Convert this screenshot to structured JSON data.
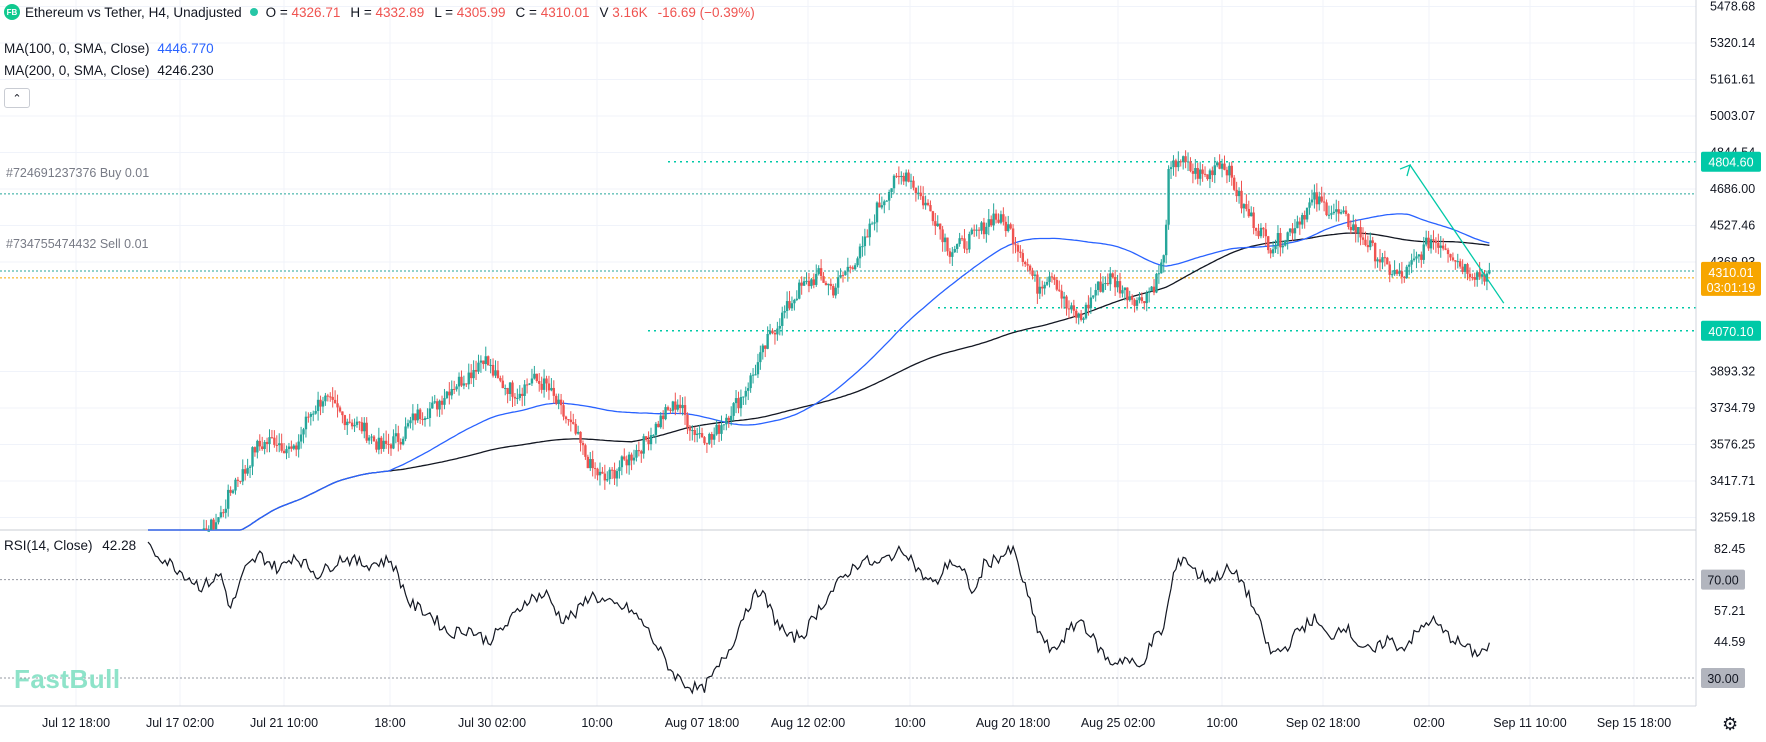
{
  "header": {
    "logo_text": "FB",
    "symbol_title": "Ethereum vs Tether, H4, Unadjusted",
    "open_label": "O =",
    "open": "4326.71",
    "high_label": "H =",
    "high": "4332.89",
    "low_label": "L =",
    "low": "4305.99",
    "close_label": "C =",
    "close": "4310.01",
    "volume_label": "V",
    "volume": "3.16K",
    "change": "-16.69 (−0.39%)"
  },
  "indicators": {
    "ma100": {
      "label": "MA(100, 0, SMA, Close)",
      "value": "4446.770",
      "color": "#2962ff"
    },
    "ma200": {
      "label": "MA(200, 0, SMA, Close)",
      "value": "4246.230",
      "color": "#131722"
    },
    "collapse_icon": "chevron-up-icon"
  },
  "orders": {
    "buy_label": "#724691237376 Buy 0.01",
    "sell_label": "#734755474432 Sell 0.01"
  },
  "rsi": {
    "label": "RSI(14, Close)",
    "value": "42.28",
    "ticks": [
      "82.45",
      "70.00",
      "57.21",
      "44.59",
      "30.00"
    ]
  },
  "badges": {
    "level_upper": "4804.60",
    "level_lower": "4070.10",
    "last_price": "4310.01",
    "countdown": "03:01:19",
    "rsi_70": "70.00",
    "rsi_30": "30.00"
  },
  "watermark": "FastBull",
  "settings_icon": "gear-icon",
  "colors": {
    "up": "#26a69a",
    "down": "#ef5350",
    "ma100": "#2962ff",
    "ma200": "#131722",
    "level_green": "#00c9a7",
    "last_price_badge": "#f7a600",
    "grid": "#f0f3fa"
  },
  "chart_data": {
    "type": "candlestick",
    "timeframe": "H4",
    "price_axis_ticks": [
      5478.68,
      5320.14,
      5161.61,
      5003.07,
      4844.54,
      4686.0,
      4527.46,
      4368.93,
      3893.32,
      3734.79,
      3576.25,
      3417.71,
      3259.18
    ],
    "price_axis_labels": [
      "5478.68",
      "5320.14",
      "5161.61",
      "5003.07",
      "4844.54",
      "4686.00",
      "4527.46",
      "4368.93",
      "3893.32",
      "3734.79",
      "3576.25",
      "3417.71",
      "3259.18"
    ],
    "time_axis_labels": [
      "Jul 12 18:00",
      "Jul 17 02:00",
      "Jul 21 10:00",
      "18:00",
      "Jul 30 02:00",
      "10:00",
      "Aug 07 18:00",
      "Aug 12 02:00",
      "10:00",
      "Aug 20 18:00",
      "Aug 25 02:00",
      "10:00",
      "Sep 02 18:00",
      "02:00",
      "Sep 11 10:00",
      "Sep 15 18:00"
    ],
    "horizontal_levels": [
      4804.6,
      4070.1,
      4170.0
    ],
    "order_lines": {
      "buy": 4665.0,
      "sell": 4330.0
    },
    "forecast_arrow": {
      "from": 4190.0,
      "to": 4790.0
    },
    "price_path": [
      [
        0,
        3135
      ],
      [
        20,
        3140
      ],
      [
        30,
        3270
      ],
      [
        36,
        3420
      ],
      [
        40,
        3460
      ],
      [
        44,
        3560
      ],
      [
        52,
        3600
      ],
      [
        60,
        3540
      ],
      [
        66,
        3700
      ],
      [
        72,
        3780
      ],
      [
        80,
        3700
      ],
      [
        88,
        3650
      ],
      [
        96,
        3560
      ],
      [
        104,
        3610
      ],
      [
        110,
        3700
      ],
      [
        118,
        3740
      ],
      [
        124,
        3820
      ],
      [
        132,
        3880
      ],
      [
        138,
        3960
      ],
      [
        144,
        3850
      ],
      [
        152,
        3800
      ],
      [
        158,
        3860
      ],
      [
        164,
        3830
      ],
      [
        170,
        3720
      ],
      [
        176,
        3620
      ],
      [
        182,
        3480
      ],
      [
        188,
        3420
      ],
      [
        196,
        3500
      ],
      [
        204,
        3580
      ],
      [
        212,
        3700
      ],
      [
        218,
        3760
      ],
      [
        224,
        3640
      ],
      [
        232,
        3600
      ],
      [
        238,
        3700
      ],
      [
        244,
        3780
      ],
      [
        250,
        3900
      ],
      [
        256,
        4050
      ],
      [
        262,
        4150
      ],
      [
        268,
        4250
      ],
      [
        276,
        4310
      ],
      [
        282,
        4250
      ],
      [
        288,
        4340
      ],
      [
        294,
        4420
      ],
      [
        300,
        4600
      ],
      [
        306,
        4700
      ],
      [
        312,
        4760
      ],
      [
        318,
        4650
      ],
      [
        324,
        4560
      ],
      [
        330,
        4420
      ],
      [
        336,
        4450
      ],
      [
        342,
        4500
      ],
      [
        348,
        4570
      ],
      [
        354,
        4520
      ],
      [
        360,
        4400
      ],
      [
        366,
        4260
      ],
      [
        372,
        4330
      ],
      [
        378,
        4170
      ],
      [
        384,
        4120
      ],
      [
        390,
        4250
      ],
      [
        396,
        4300
      ],
      [
        402,
        4240
      ],
      [
        408,
        4200
      ],
      [
        414,
        4270
      ],
      [
        418,
        4380
      ],
      [
        420,
        4740
      ],
      [
        424,
        4820
      ],
      [
        430,
        4760
      ],
      [
        436,
        4740
      ],
      [
        440,
        4810
      ],
      [
        444,
        4780
      ],
      [
        450,
        4620
      ],
      [
        456,
        4530
      ],
      [
        462,
        4440
      ],
      [
        468,
        4480
      ],
      [
        474,
        4560
      ],
      [
        480,
        4640
      ],
      [
        486,
        4600
      ],
      [
        492,
        4560
      ],
      [
        498,
        4500
      ],
      [
        504,
        4420
      ],
      [
        510,
        4340
      ],
      [
        516,
        4300
      ],
      [
        522,
        4380
      ],
      [
        528,
        4470
      ],
      [
        534,
        4440
      ],
      [
        540,
        4360
      ],
      [
        546,
        4320
      ],
      [
        552,
        4310
      ]
    ],
    "rsi_ylim": [
      30,
      82.45
    ],
    "rsi_levels": [
      70,
      30
    ],
    "rsi_path": [
      [
        0,
        83
      ],
      [
        10,
        76
      ],
      [
        22,
        67
      ],
      [
        30,
        72
      ],
      [
        34,
        58
      ],
      [
        40,
        74
      ],
      [
        46,
        80
      ],
      [
        54,
        74
      ],
      [
        60,
        80
      ],
      [
        70,
        72
      ],
      [
        80,
        79
      ],
      [
        90,
        76
      ],
      [
        100,
        78
      ],
      [
        108,
        60
      ],
      [
        116,
        56
      ],
      [
        124,
        48
      ],
      [
        132,
        50
      ],
      [
        140,
        45
      ],
      [
        148,
        52
      ],
      [
        156,
        62
      ],
      [
        164,
        64
      ],
      [
        170,
        54
      ],
      [
        176,
        56
      ],
      [
        182,
        64
      ],
      [
        190,
        60
      ],
      [
        198,
        58
      ],
      [
        204,
        52
      ],
      [
        210,
        42
      ],
      [
        216,
        32
      ],
      [
        222,
        27
      ],
      [
        228,
        25
      ],
      [
        234,
        33
      ],
      [
        240,
        43
      ],
      [
        246,
        58
      ],
      [
        252,
        66
      ],
      [
        258,
        54
      ],
      [
        264,
        46
      ],
      [
        270,
        48
      ],
      [
        276,
        58
      ],
      [
        282,
        66
      ],
      [
        288,
        73
      ],
      [
        294,
        78
      ],
      [
        300,
        76
      ],
      [
        306,
        80
      ],
      [
        312,
        82
      ],
      [
        318,
        72
      ],
      [
        324,
        68
      ],
      [
        330,
        78
      ],
      [
        336,
        72
      ],
      [
        340,
        64
      ],
      [
        344,
        76
      ],
      [
        350,
        79
      ],
      [
        356,
        82
      ],
      [
        360,
        70
      ],
      [
        366,
        50
      ],
      [
        372,
        40
      ],
      [
        378,
        48
      ],
      [
        384,
        54
      ],
      [
        390,
        44
      ],
      [
        396,
        36
      ],
      [
        402,
        38
      ],
      [
        408,
        34
      ],
      [
        414,
        46
      ],
      [
        418,
        50
      ],
      [
        422,
        72
      ],
      [
        426,
        80
      ],
      [
        432,
        72
      ],
      [
        438,
        70
      ],
      [
        444,
        74
      ],
      [
        450,
        70
      ],
      [
        456,
        56
      ],
      [
        462,
        40
      ],
      [
        468,
        42
      ],
      [
        474,
        50
      ],
      [
        480,
        54
      ],
      [
        486,
        46
      ],
      [
        492,
        52
      ],
      [
        498,
        44
      ],
      [
        504,
        40
      ],
      [
        510,
        46
      ],
      [
        516,
        42
      ],
      [
        522,
        48
      ],
      [
        528,
        54
      ],
      [
        534,
        48
      ],
      [
        540,
        44
      ],
      [
        546,
        40
      ],
      [
        552,
        42.28
      ]
    ]
  }
}
